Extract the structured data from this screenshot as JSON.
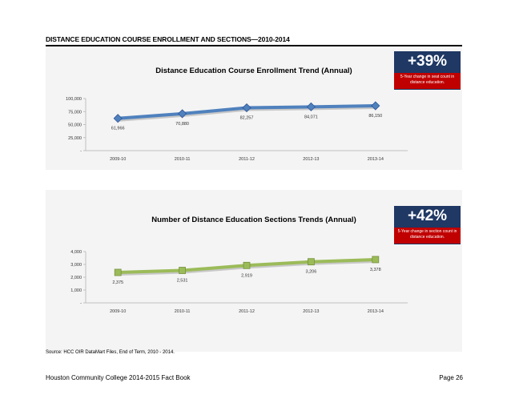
{
  "page": {
    "section_title": "DISTANCE EDUCATION COURSE ENROLLMENT AND SECTIONS—2010-2014",
    "source": "Source: HCC OIR DataMart Files, End of Term, 2010 - 2014.",
    "footer_left": "Houston Community College 2014-2015 Fact Book",
    "footer_right": "Page 26"
  },
  "kpis": [
    {
      "value": "+39%",
      "note": "5-Year change in seat count in distance education.",
      "colors": {
        "box": "#1f3864",
        "note": "#c00000"
      }
    },
    {
      "value": "+42%",
      "note": "5-Year change in section count in distance education.",
      "colors": {
        "box": "#1f3864",
        "note": "#c00000"
      }
    }
  ],
  "chart_data": [
    {
      "type": "line",
      "title": "Distance Education Course Enrollment Trend (Annual)",
      "categories": [
        "2009-10",
        "2010-11",
        "2011-12",
        "2012-13",
        "2013-14"
      ],
      "series": [
        {
          "values": [
            61966,
            70880,
            82257,
            84071,
            86150
          ],
          "color": "#4f81bd",
          "marker": "diamond"
        }
      ],
      "data_labels": [
        "61,966",
        "70,880",
        "82,257",
        "84,071",
        "86,150"
      ],
      "yticks": [
        "100,000",
        "75,000",
        "50,000",
        "25,000",
        "-"
      ],
      "ylim": [
        0,
        100000
      ],
      "grid": false
    },
    {
      "type": "line",
      "title": "Number of Distance Education Sections Trends (Annual)",
      "categories": [
        "2009-10",
        "2010-11",
        "2011-12",
        "2012-13",
        "2013-14"
      ],
      "series": [
        {
          "values": [
            2375,
            2531,
            2919,
            3206,
            3378
          ],
          "color": "#9bbb59",
          "marker": "square"
        }
      ],
      "data_labels": [
        "2,375",
        "2,531",
        "2,919",
        "3,206",
        "3,378"
      ],
      "yticks": [
        "4,000",
        "3,000",
        "2,000",
        "1,000",
        "-"
      ],
      "ylim": [
        0,
        4000
      ],
      "grid": false
    }
  ]
}
